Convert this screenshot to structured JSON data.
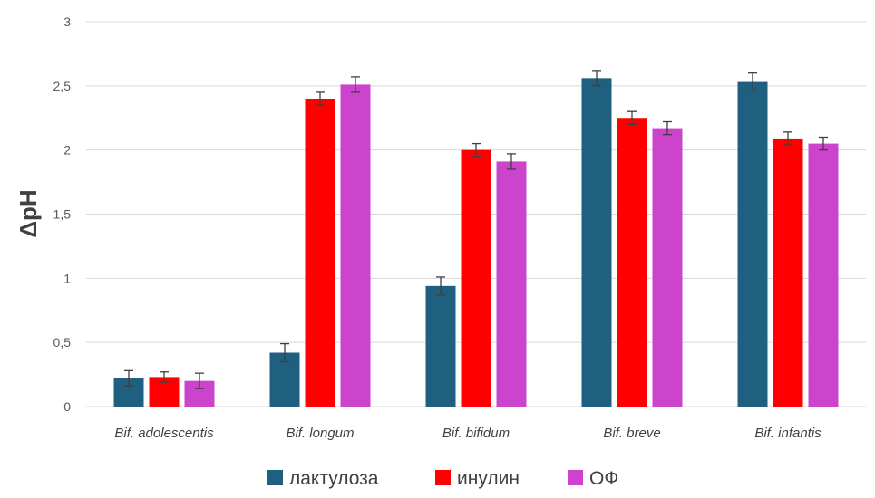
{
  "chart_data": {
    "type": "bar",
    "categories": [
      "Bif. adolescentis",
      "Bif. longum",
      "Bif. bifidum",
      "Bif. breve",
      "Bif. infantis"
    ],
    "series": [
      {
        "name": "лактулоза",
        "color": "#1f5f7f",
        "values": [
          0.22,
          0.42,
          0.94,
          2.56,
          2.53
        ],
        "errors": [
          0.06,
          0.07,
          0.07,
          0.06,
          0.07
        ]
      },
      {
        "name": "инулин",
        "color": "#ff0000",
        "values": [
          0.23,
          2.4,
          2.0,
          2.25,
          2.09
        ],
        "errors": [
          0.04,
          0.05,
          0.05,
          0.05,
          0.05
        ]
      },
      {
        "name": "ОФ",
        "color": "#cc44cc",
        "values": [
          0.2,
          2.51,
          1.91,
          2.17,
          2.05
        ],
        "errors": [
          0.06,
          0.06,
          0.06,
          0.05,
          0.05
        ]
      }
    ],
    "xlabel": "",
    "ylabel": "ΔpH",
    "ylim": [
      0,
      3
    ],
    "yticks": [
      "0",
      "0,5",
      "1",
      "1,5",
      "2",
      "2,5",
      "3"
    ],
    "grid": true,
    "legend_position": "bottom"
  }
}
